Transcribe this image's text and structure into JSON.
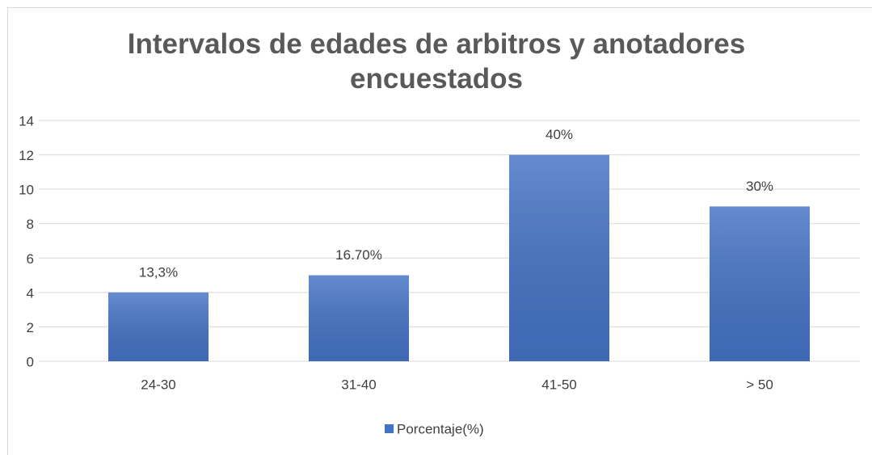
{
  "chart_data": {
    "type": "bar",
    "title": "Intervalos de edades de arbitros y anotadores encuestados",
    "categories": [
      "24-30",
      "31-40",
      "41-50",
      "> 50"
    ],
    "series": [
      {
        "name": "Porcentaje(%)",
        "color": "#4472c4",
        "values": [
          4,
          5,
          12,
          9
        ]
      }
    ],
    "annotations": [
      "13,3%",
      "16.70%",
      "40%",
      "30%"
    ],
    "ylim": [
      0,
      14
    ],
    "yticks": [
      0,
      2,
      4,
      6,
      8,
      10,
      12,
      14
    ],
    "grid": true,
    "legend": "bottom"
  }
}
